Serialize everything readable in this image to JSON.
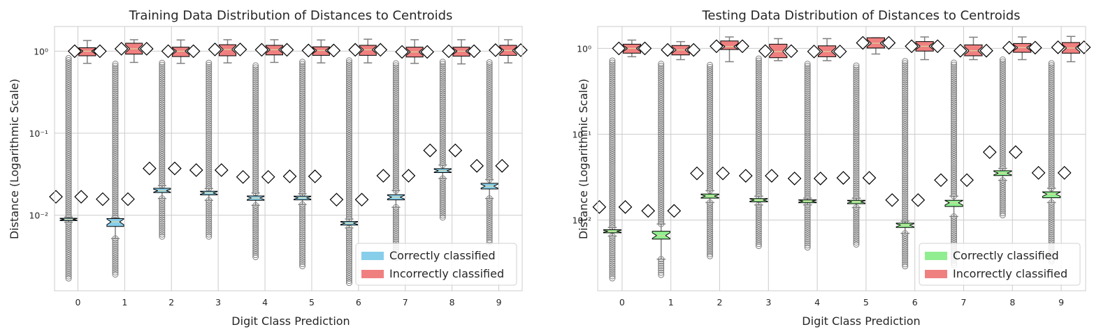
{
  "colors": {
    "correct_train": "#87ceeb",
    "correct_test": "#90ee90",
    "incorrect": "#f08080",
    "outlier": "#808080",
    "whisker": "#808080",
    "grid": "#cccccc",
    "mean_marker_fill": "#ffffff",
    "mean_marker_stroke": "#000000"
  },
  "chart_data": [
    {
      "type": "box",
      "title": "Training Data Distribution of Distances to Centroids",
      "xlabel": "Digit Class Prediction",
      "ylabel": "Distance (Logarithmic Scale)",
      "yscale": "log",
      "ylim": [
        0.0012,
        2.0
      ],
      "yticks": [
        {
          "value": 0.01,
          "label": "10⁻²"
        },
        {
          "value": 0.1,
          "label": "10⁻¹"
        },
        {
          "value": 1,
          "label": "10⁰"
        }
      ],
      "categories": [
        "0",
        "1",
        "2",
        "3",
        "4",
        "5",
        "6",
        "7",
        "8",
        "9"
      ],
      "grid": true,
      "legend_position": "lower-right",
      "legend": [
        "Correctly classified",
        "Incorrectly classified"
      ],
      "series": [
        {
          "name": "Correctly classified",
          "q1": [
            0.0086,
            0.0073,
            0.0189,
            0.0177,
            0.0152,
            0.0154,
            0.0076,
            0.0154,
            0.0331,
            0.0209
          ],
          "median": [
            0.0089,
            0.0083,
            0.0199,
            0.0187,
            0.0162,
            0.0163,
            0.008,
            0.0166,
            0.0349,
            0.0226
          ],
          "q3": [
            0.0092,
            0.0091,
            0.0213,
            0.0196,
            0.0172,
            0.0171,
            0.0084,
            0.0178,
            0.037,
            0.0245
          ],
          "whisker_low": [
            0.0082,
            0.0052,
            0.016,
            0.0152,
            0.0132,
            0.0135,
            0.007,
            0.0125,
            0.028,
            0.016
          ],
          "whisker_high": [
            0.0095,
            0.0094,
            0.023,
            0.0212,
            0.0187,
            0.0183,
            0.009,
            0.02,
            0.041,
            0.0272
          ],
          "mean": [
            0.0168,
            0.0157,
            0.0372,
            0.0355,
            0.0293,
            0.0298,
            0.0155,
            0.0303,
            0.0617,
            0.04
          ],
          "outlier_low": [
            0.0017,
            0.0019,
            0.0055,
            0.0055,
            0.0031,
            0.0024,
            0.0015,
            0.003,
            0.0094,
            0.0047
          ],
          "outlier_high": [
            0.82,
            0.7,
            0.72,
            0.72,
            0.67,
            0.74,
            0.77,
            0.71,
            0.74,
            0.73
          ]
        },
        {
          "name": "Incorrectly classified",
          "q1": [
            0.88,
            0.92,
            0.86,
            0.88,
            0.9,
            0.89,
            0.89,
            0.85,
            0.87,
            0.89
          ],
          "median": [
            1.0,
            1.07,
            1.0,
            1.05,
            1.04,
            1.02,
            1.04,
            0.98,
            1.0,
            1.02
          ],
          "q3": [
            1.1,
            1.25,
            1.12,
            1.2,
            1.18,
            1.13,
            1.18,
            1.12,
            1.12,
            1.18
          ],
          "whisker_low": [
            0.71,
            0.73,
            0.71,
            0.72,
            0.73,
            0.72,
            0.72,
            0.71,
            0.7,
            0.72
          ],
          "whisker_high": [
            1.35,
            1.38,
            1.37,
            1.38,
            1.38,
            1.37,
            1.4,
            1.38,
            1.38,
            1.38
          ],
          "mean": [
            1.0,
            1.07,
            1.0,
            1.05,
            1.04,
            1.02,
            1.04,
            0.98,
            1.0,
            1.03
          ]
        }
      ]
    },
    {
      "type": "box",
      "title": "Testing Data Distribution of Distances to Centroids",
      "xlabel": "Digit Class Prediction",
      "ylabel": "Distance (Logarithmic Scale)",
      "yscale": "log",
      "ylim": [
        0.0015,
        1.8
      ],
      "yticks": [
        {
          "value": 0.01,
          "label": "10⁻²"
        },
        {
          "value": 0.1,
          "label": "10⁻¹"
        },
        {
          "value": 1,
          "label": "10⁰"
        }
      ],
      "categories": [
        "0",
        "1",
        "2",
        "3",
        "4",
        "5",
        "6",
        "7",
        "8",
        "9"
      ],
      "grid": true,
      "legend_position": "lower-right",
      "legend": [
        "Correctly classified",
        "Incorrectly classified"
      ],
      "series": [
        {
          "name": "Correctly classified",
          "q1": [
            0.0071,
            0.006,
            0.018,
            0.0163,
            0.0159,
            0.0155,
            0.0082,
            0.0144,
            0.033,
            0.0182
          ],
          "median": [
            0.0074,
            0.0066,
            0.019,
            0.0171,
            0.0166,
            0.0163,
            0.0087,
            0.0159,
            0.0352,
            0.02
          ],
          "q3": [
            0.0077,
            0.0074,
            0.0201,
            0.0178,
            0.0172,
            0.017,
            0.0092,
            0.017,
            0.0375,
            0.0213
          ],
          "whisker_low": [
            0.0065,
            0.0035,
            0.016,
            0.015,
            0.015,
            0.014,
            0.007,
            0.011,
            0.029,
            0.016
          ],
          "whisker_high": [
            0.0082,
            0.009,
            0.022,
            0.019,
            0.018,
            0.018,
            0.0097,
            0.019,
            0.04,
            0.0235
          ],
          "mean": [
            0.0142,
            0.0128,
            0.035,
            0.0328,
            0.0305,
            0.031,
            0.0171,
            0.0292,
            0.0619,
            0.0355
          ],
          "outlier_low": [
            0.0021,
            0.0023,
            0.0038,
            0.005,
            0.0048,
            0.0052,
            0.0029,
            0.003,
            0.0114,
            0.0033
          ],
          "outlier_high": [
            0.72,
            0.66,
            0.64,
            0.76,
            0.66,
            0.63,
            0.71,
            0.68,
            0.74,
            0.67
          ]
        },
        {
          "name": "Incorrectly classified",
          "q1": [
            0.88,
            0.84,
            0.97,
            0.78,
            0.8,
            1.01,
            0.93,
            0.82,
            0.9,
            0.88
          ],
          "median": [
            1.0,
            0.96,
            1.05,
            0.92,
            0.92,
            1.15,
            1.06,
            0.94,
            1.02,
            1.01
          ],
          "q3": [
            1.12,
            1.08,
            1.22,
            1.12,
            1.07,
            1.33,
            1.2,
            1.1,
            1.14,
            1.17
          ],
          "whisker_low": [
            0.8,
            0.74,
            0.7,
            0.72,
            0.72,
            0.86,
            0.74,
            0.74,
            0.74,
            0.7
          ],
          "whisker_high": [
            1.25,
            1.2,
            1.36,
            1.3,
            1.3,
            1.33,
            1.36,
            1.35,
            1.36,
            1.38
          ],
          "mean": [
            1.0,
            0.96,
            1.06,
            0.93,
            0.92,
            1.16,
            1.06,
            0.94,
            1.02,
            1.03
          ]
        }
      ]
    }
  ]
}
